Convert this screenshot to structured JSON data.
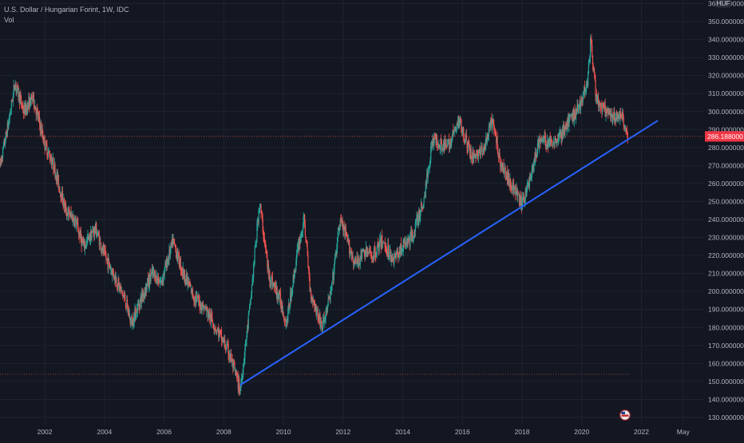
{
  "header": {
    "symbol_line": "U.S. Dollar / Hungarian Forint, 1W, IDC",
    "indicator": "Vol"
  },
  "price_scale": {
    "currency_badge": "HUF",
    "last_price": "286.188000",
    "last_price_color": "#f23645"
  },
  "colors": {
    "background": "#131722",
    "grid": "#1f2330",
    "up": "#26a69a",
    "down": "#ef5350",
    "trendline": "#2962ff",
    "axis_text": "#b2b5be"
  },
  "chart_data": {
    "type": "candlestick",
    "title": "U.S. Dollar / Hungarian Forint, 1W, IDC",
    "y_ticks": [
      "360.000000",
      "350.000000",
      "340.000000",
      "330.000000",
      "320.000000",
      "310.000000",
      "300.000000",
      "290.000000",
      "280.000000",
      "270.000000",
      "260.000000",
      "250.000000",
      "240.000000",
      "230.000000",
      "220.000000",
      "210.000000",
      "200.000000",
      "190.000000",
      "180.000000",
      "170.000000",
      "160.000000",
      "150.000000",
      "140.000000",
      "130.000000"
    ],
    "y_range": [
      126,
      362
    ],
    "x_ticks": [
      "2002",
      "2004",
      "2006",
      "2008",
      "2010",
      "2012",
      "2014",
      "2016",
      "2018",
      "2020",
      "2022",
      "May"
    ],
    "x_tick_values": [
      2002,
      2004,
      2006,
      2008,
      2010,
      2012,
      2014,
      2016,
      2018,
      2020,
      2022,
      2023.4
    ],
    "x_range": [
      2000.5,
      2024.1
    ],
    "price_path": [
      [
        2000.5,
        270
      ],
      [
        2000.8,
        295
      ],
      [
        2001.0,
        316
      ],
      [
        2001.3,
        300
      ],
      [
        2001.6,
        308
      ],
      [
        2002.0,
        282
      ],
      [
        2002.3,
        270
      ],
      [
        2002.7,
        245
      ],
      [
        2003.0,
        240
      ],
      [
        2003.3,
        225
      ],
      [
        2003.7,
        235
      ],
      [
        2004.0,
        220
      ],
      [
        2004.3,
        210
      ],
      [
        2004.7,
        195
      ],
      [
        2004.9,
        182
      ],
      [
        2005.2,
        195
      ],
      [
        2005.6,
        210
      ],
      [
        2005.9,
        205
      ],
      [
        2006.3,
        228
      ],
      [
        2006.6,
        212
      ],
      [
        2007.0,
        197
      ],
      [
        2007.4,
        190
      ],
      [
        2007.8,
        178
      ],
      [
        2008.2,
        165
      ],
      [
        2008.55,
        145
      ],
      [
        2008.9,
        195
      ],
      [
        2009.2,
        250
      ],
      [
        2009.5,
        210
      ],
      [
        2009.9,
        195
      ],
      [
        2010.1,
        182
      ],
      [
        2010.5,
        225
      ],
      [
        2010.7,
        240
      ],
      [
        2010.9,
        200
      ],
      [
        2011.3,
        180
      ],
      [
        2011.6,
        200
      ],
      [
        2011.9,
        240
      ],
      [
        2012.1,
        230
      ],
      [
        2012.4,
        215
      ],
      [
        2012.7,
        222
      ],
      [
        2013.0,
        220
      ],
      [
        2013.3,
        228
      ],
      [
        2013.7,
        218
      ],
      [
        2014.0,
        225
      ],
      [
        2014.3,
        230
      ],
      [
        2014.7,
        250
      ],
      [
        2015.0,
        285
      ],
      [
        2015.5,
        280
      ],
      [
        2015.9,
        295
      ],
      [
        2016.3,
        275
      ],
      [
        2016.7,
        278
      ],
      [
        2017.0,
        295
      ],
      [
        2017.3,
        270
      ],
      [
        2017.7,
        258
      ],
      [
        2018.0,
        248
      ],
      [
        2018.3,
        265
      ],
      [
        2018.6,
        285
      ],
      [
        2018.9,
        282
      ],
      [
        2019.3,
        287
      ],
      [
        2019.6,
        295
      ],
      [
        2019.9,
        302
      ],
      [
        2020.2,
        318
      ],
      [
        2020.3,
        340
      ],
      [
        2020.5,
        305
      ],
      [
        2020.8,
        300
      ],
      [
        2021.1,
        295
      ],
      [
        2021.3,
        300
      ],
      [
        2021.55,
        286.188
      ]
    ],
    "trendline": [
      [
        2008.55,
        148
      ],
      [
        2022.55,
        295
      ]
    ],
    "horizontal_levels": [
      286.188,
      154
    ]
  }
}
